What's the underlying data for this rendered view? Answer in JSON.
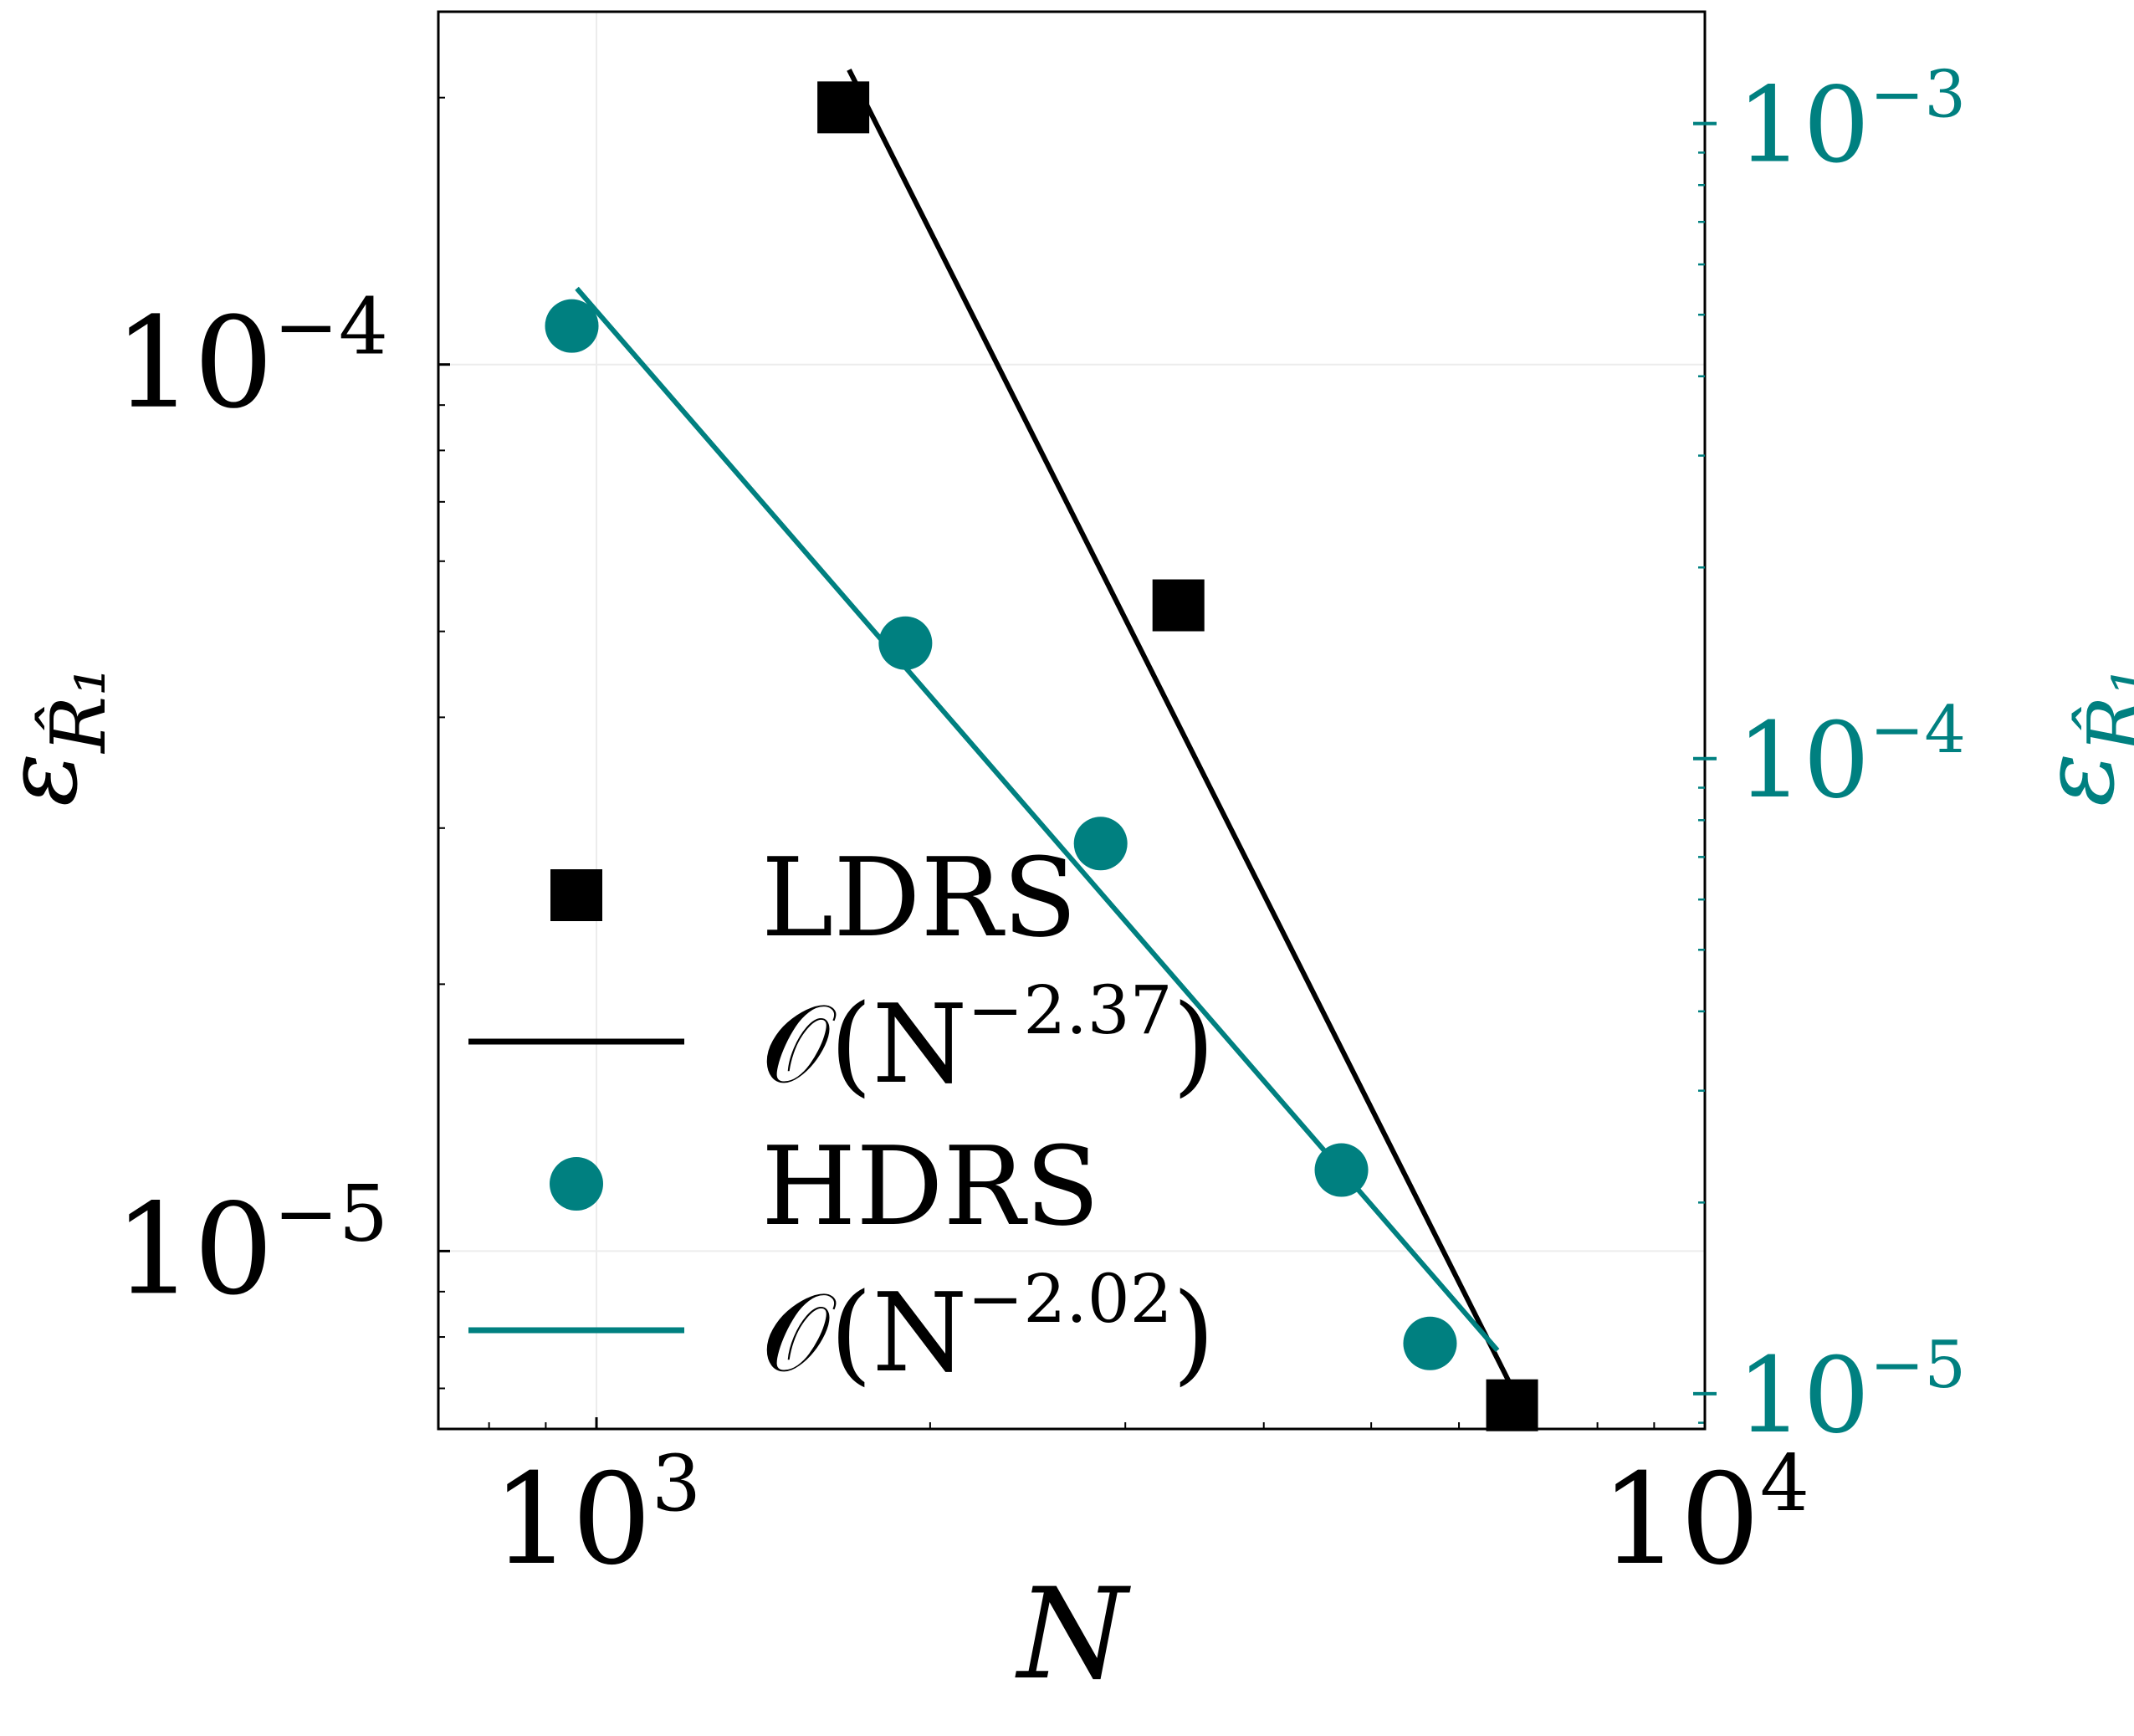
{
  "chart_data": {
    "type": "scatter",
    "x_scale": "log",
    "y_scale": "log",
    "y2_scale": "log",
    "xlim": [
      720,
      10000
    ],
    "ylim": [
      6.3e-06,
      0.00025
    ],
    "y2lim": [
      8.8e-06,
      0.0015
    ],
    "grid": true,
    "legend_position": "lower-left",
    "xlabel": "N",
    "ylabel": "ε_R̂1",
    "y2label": "ε_R̂1",
    "x_ticks": [
      {
        "value": 1000,
        "label": "10^3",
        "base": "10",
        "exp": "3"
      },
      {
        "value": 10000,
        "label": "10^4",
        "base": "10",
        "exp": "4"
      }
    ],
    "y_ticks": [
      {
        "value": 0.0001,
        "label": "10^-4",
        "base": "10",
        "exp": "−4"
      },
      {
        "value": 1e-05,
        "label": "10^-5",
        "base": "10",
        "exp": "−5"
      }
    ],
    "y2_ticks": [
      {
        "value": 0.001,
        "label": "10^-3",
        "base": "10",
        "exp": "−3"
      },
      {
        "value": 0.0001,
        "label": "10^-4",
        "base": "10",
        "exp": "−4"
      },
      {
        "value": 1e-05,
        "label": "10^-5",
        "base": "10",
        "exp": "−5"
      }
    ],
    "series": [
      {
        "name": "LDRS",
        "kind": "markers",
        "marker": "square",
        "axis": "left",
        "color": "#000000",
        "x": [
          1670,
          3350,
          6700
        ],
        "y": [
          0.000195,
          5.35e-05,
          6.7e-06
        ]
      },
      {
        "name": "O(N^-2.37)",
        "label_base": "𝒪(N",
        "label_exp": "−2.37",
        "label_tail": ")",
        "kind": "line",
        "axis": "left",
        "color": "#000000",
        "x": [
          1690,
          6950
        ],
        "y": [
          0.000215,
          6.4e-06
        ]
      },
      {
        "name": "HDRS",
        "kind": "markers",
        "marker": "circle",
        "axis": "right",
        "color": "#008080",
        "x": [
          950,
          1900,
          2850,
          4700,
          5650
        ],
        "y": [
          0.00048,
          0.000152,
          7.35e-05,
          2.25e-05,
          1.2e-05
        ]
      },
      {
        "name": "O(N^-2.02)",
        "label_base": "𝒪(N",
        "label_exp": "−2.02",
        "label_tail": ")",
        "kind": "line",
        "axis": "right",
        "color": "#008080",
        "x": [
          960,
          6500
        ],
        "y": [
          0.00055,
          1.17e-05
        ]
      }
    ]
  }
}
